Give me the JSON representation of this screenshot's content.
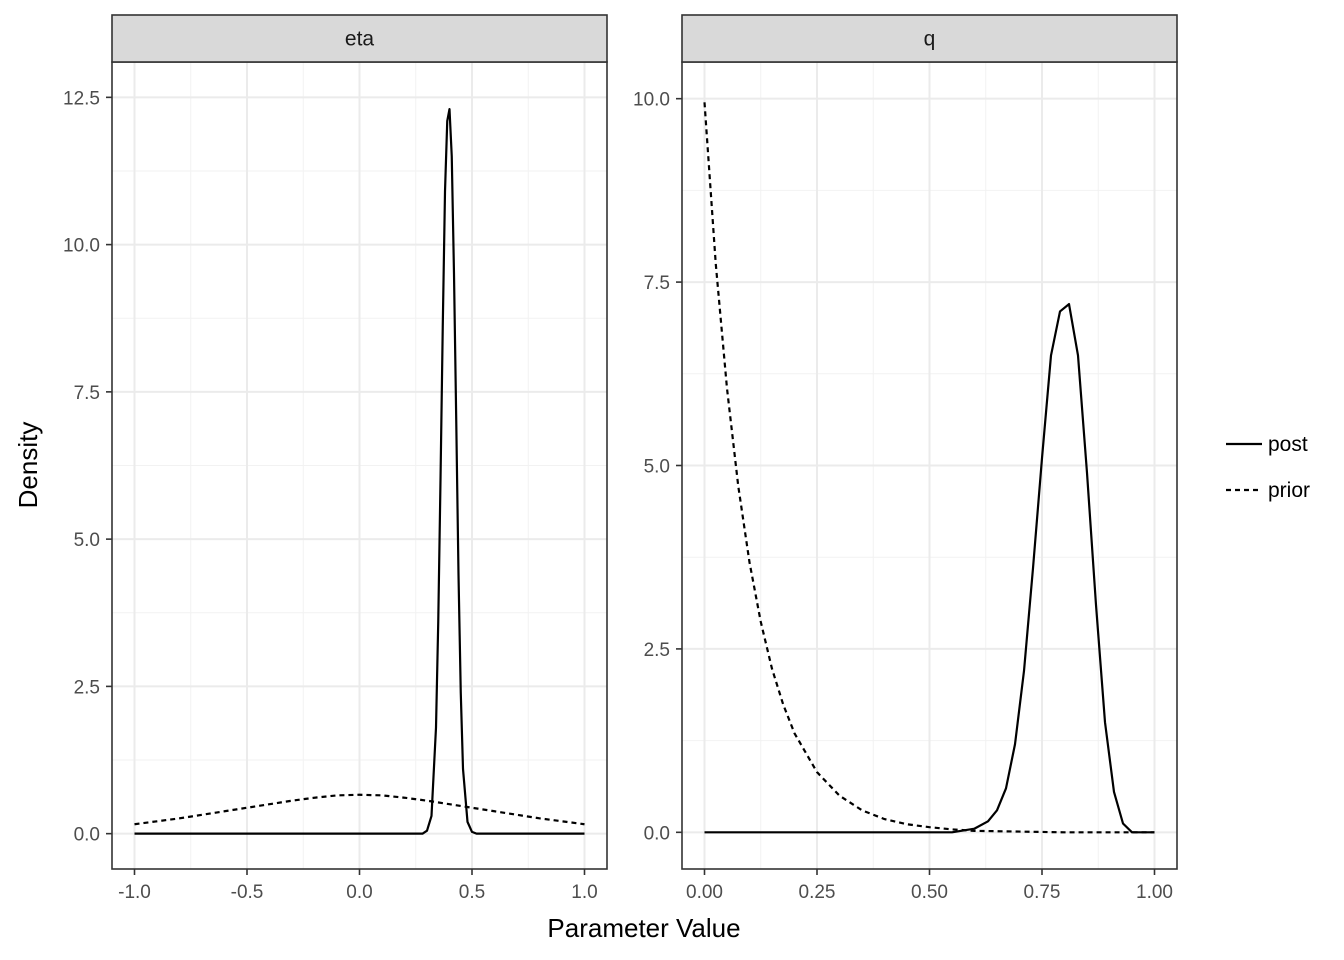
{
  "chart_data": {
    "type": "line",
    "xlabel": "Parameter Value",
    "ylabel": "Density",
    "legend": {
      "placement": "right",
      "entries": [
        {
          "name": "post",
          "linetype": "solid"
        },
        {
          "name": "prior",
          "linetype": "dashed"
        }
      ]
    },
    "grid": true,
    "facets": [
      {
        "label": "eta",
        "xlim": [
          -1.1,
          1.1
        ],
        "ylim": [
          -0.6,
          13.1
        ],
        "x_ticks": [
          -1.0,
          -0.5,
          0.0,
          0.5,
          1.0
        ],
        "x_tick_labels": [
          "-1.0",
          "-0.5",
          "0.0",
          "0.5",
          "1.0"
        ],
        "y_ticks": [
          0.0,
          2.5,
          5.0,
          7.5,
          10.0,
          12.5
        ],
        "y_tick_labels": [
          "0.0",
          "2.5",
          "5.0",
          "7.5",
          "10.0",
          "12.5"
        ],
        "series": [
          {
            "name": "post",
            "x": [
              -1.0,
              0.28,
              0.3,
              0.32,
              0.34,
              0.35,
              0.36,
              0.37,
              0.38,
              0.39,
              0.4,
              0.41,
              0.42,
              0.43,
              0.44,
              0.45,
              0.46,
              0.48,
              0.5,
              0.52,
              1.0
            ],
            "y": [
              0.0,
              0.0,
              0.05,
              0.3,
              1.8,
              3.6,
              6.0,
              8.6,
              10.9,
              12.1,
              12.3,
              11.5,
              9.5,
              7.0,
              4.4,
              2.4,
              1.1,
              0.2,
              0.03,
              0.0,
              0.0
            ]
          },
          {
            "name": "prior",
            "x": [
              -1.0,
              -0.9,
              -0.8,
              -0.7,
              -0.6,
              -0.5,
              -0.4,
              -0.3,
              -0.2,
              -0.1,
              0.0,
              0.1,
              0.2,
              0.3,
              0.4,
              0.5,
              0.6,
              0.7,
              0.8,
              0.9,
              1.0
            ],
            "y": [
              0.16,
              0.21,
              0.26,
              0.32,
              0.38,
              0.44,
              0.5,
              0.56,
              0.61,
              0.65,
              0.66,
              0.65,
              0.61,
              0.56,
              0.5,
              0.44,
              0.38,
              0.32,
              0.26,
              0.21,
              0.16
            ]
          }
        ]
      },
      {
        "label": "q",
        "xlim": [
          -0.05,
          1.05
        ],
        "ylim": [
          -0.5,
          10.5
        ],
        "x_ticks": [
          0.0,
          0.25,
          0.5,
          0.75,
          1.0
        ],
        "x_tick_labels": [
          "0.00",
          "0.25",
          "0.50",
          "0.75",
          "1.00"
        ],
        "y_ticks": [
          0.0,
          2.5,
          5.0,
          7.5,
          10.0
        ],
        "y_tick_labels": [
          "0.0",
          "2.5",
          "5.0",
          "7.5",
          "10.0"
        ],
        "series": [
          {
            "name": "post",
            "x": [
              0.0,
              0.55,
              0.6,
              0.63,
              0.65,
              0.67,
              0.69,
              0.71,
              0.73,
              0.75,
              0.77,
              0.79,
              0.81,
              0.83,
              0.85,
              0.87,
              0.89,
              0.91,
              0.93,
              0.95,
              1.0
            ],
            "y": [
              0.0,
              0.0,
              0.05,
              0.15,
              0.3,
              0.6,
              1.2,
              2.2,
              3.6,
              5.1,
              6.5,
              7.1,
              7.2,
              6.5,
              4.9,
              3.1,
              1.5,
              0.55,
              0.12,
              0.0,
              0.0
            ]
          },
          {
            "name": "prior",
            "x": [
              0.0,
              0.025,
              0.05,
              0.075,
              0.1,
              0.125,
              0.15,
              0.175,
              0.2,
              0.25,
              0.3,
              0.35,
              0.4,
              0.45,
              0.5,
              0.55,
              0.6,
              0.7,
              0.8,
              0.9,
              1.0
            ],
            "y": [
              9.95,
              7.75,
              6.05,
              4.72,
              3.68,
              2.87,
              2.23,
              1.74,
              1.35,
              0.82,
              0.5,
              0.3,
              0.18,
              0.11,
              0.07,
              0.04,
              0.02,
              0.01,
              0.0,
              0.0,
              0.0
            ]
          }
        ]
      }
    ]
  }
}
